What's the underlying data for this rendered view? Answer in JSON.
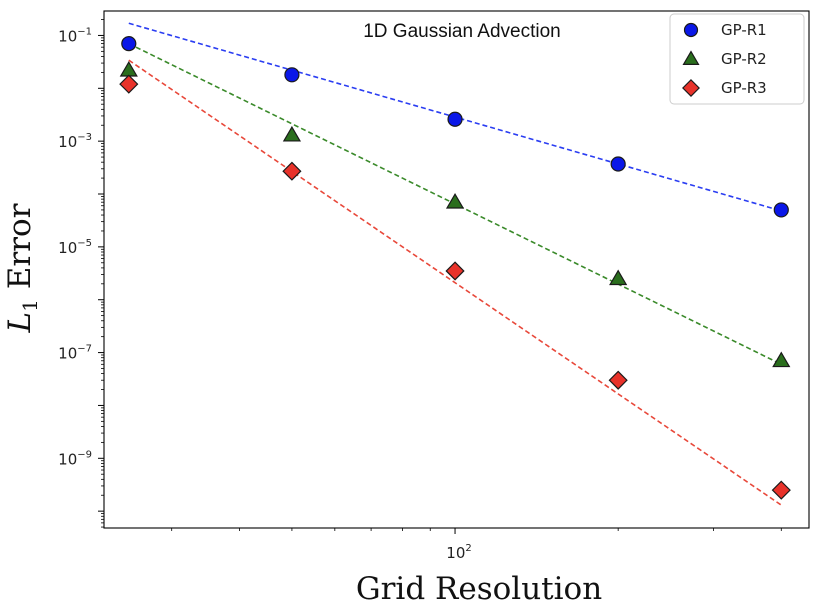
{
  "chart_data": {
    "type": "scatter",
    "title": "1D Gaussian Advection",
    "xlabel": "Grid Resolution",
    "ylabel_main": "L",
    "ylabel_sub": "1",
    "ylabel_rest": " Error",
    "xscale": "log",
    "yscale": "log",
    "xlim": [
      22.5,
      450
    ],
    "ylim": [
      4.8e-11,
      0.29
    ],
    "x": [
      25,
      50,
      100,
      200,
      400
    ],
    "xticks": [
      {
        "value": 100,
        "base": "10",
        "exp": "2"
      }
    ],
    "yticks": [
      {
        "value": 1e-09,
        "base": "10",
        "exp": "−9"
      },
      {
        "value": 1e-07,
        "base": "10",
        "exp": "−7"
      },
      {
        "value": 1e-05,
        "base": "10",
        "exp": "−5"
      },
      {
        "value": 0.001,
        "base": "10",
        "exp": "−3"
      },
      {
        "value": 0.1,
        "base": "10",
        "exp": "−1"
      }
    ],
    "legend_position": "top-right",
    "series": [
      {
        "name": "GP-R1",
        "marker": "circle",
        "color": "#0a17e8",
        "line_color": "#2a3df2",
        "values": [
          0.07,
          0.018,
          0.0026,
          0.00037,
          5e-05
        ],
        "fit": {
          "x0": 25,
          "y0": 0.17,
          "x1": 400,
          "y1": 4.8e-05
        }
      },
      {
        "name": "GP-R2",
        "marker": "triangle",
        "color": "#2a6e1d",
        "line_color": "#3a8a2a",
        "values": [
          0.022,
          0.0013,
          7e-05,
          2.5e-06,
          7e-08
        ],
        "fit": {
          "x0": 25,
          "y0": 0.07,
          "x1": 400,
          "y1": 6e-08
        }
      },
      {
        "name": "GP-R3",
        "marker": "diamond",
        "color": "#e8322a",
        "line_color": "#e8483a",
        "values": [
          0.012,
          0.00027,
          3.5e-06,
          3e-08,
          2.5e-10
        ],
        "fit": {
          "x0": 25,
          "y0": 0.034,
          "x1": 400,
          "y1": 1.3e-10
        }
      }
    ]
  }
}
